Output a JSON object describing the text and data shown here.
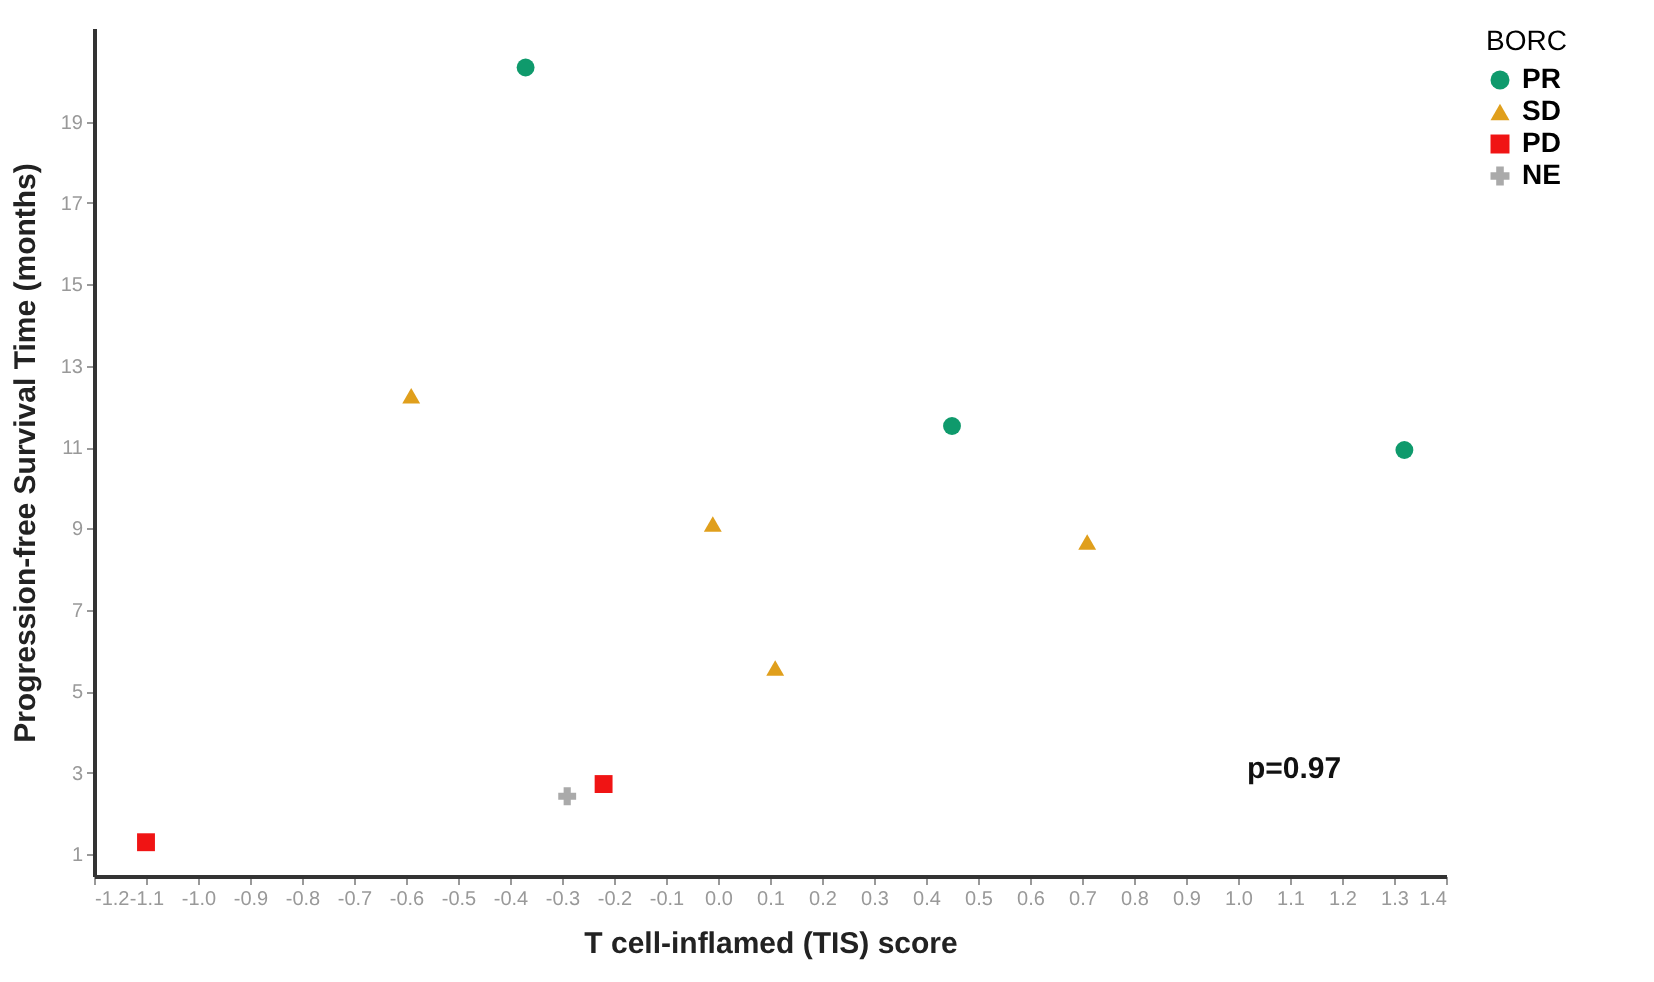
{
  "chart_data": {
    "type": "scatter",
    "xlabel": "T cell-inflamed (TIS) score",
    "ylabel": "Progression-free Survival Time (months)",
    "legend_title": "BORC",
    "legend": "right",
    "grid": false,
    "xlim": [
      -1.2,
      1.4
    ],
    "ylim": [
      0.46,
      21.3
    ],
    "xticks": [
      -1.2,
      -1.1,
      {
        "value": -1.0,
        "label": "-1.0"
      },
      -0.9,
      -0.8,
      -0.7,
      -0.6,
      -0.5,
      -0.4,
      -0.3,
      -0.2,
      -0.1,
      {
        "value": 0,
        "label": "0.0"
      },
      0.1,
      0.2,
      0.3,
      0.4,
      0.5,
      0.6,
      0.7,
      0.8,
      0.9,
      {
        "value": 1,
        "label": "1.0"
      },
      1.1,
      1.2,
      1.3,
      1.4
    ],
    "yticks": [
      1,
      3,
      5,
      7,
      9,
      11,
      13,
      15,
      17,
      19
    ],
    "annotations": [
      "p=0.97"
    ],
    "series": [
      {
        "name": "PR",
        "color": "#0f9a6c",
        "marker": "circle",
        "x": [
          -0.37,
          0.45,
          1.32
        ],
        "values": [
          20.33,
          11.52,
          10.93
        ]
      },
      {
        "name": "SD",
        "color": "#e09f1c",
        "marker": "triangle",
        "x": [
          -0.59,
          -0.01,
          0.11,
          0.71
        ],
        "values": [
          12.26,
          9.11,
          5.57,
          8.67
        ]
      },
      {
        "name": "PD",
        "color": "#f01414",
        "marker": "square",
        "x": [
          -1.1,
          -0.22
        ],
        "values": [
          1.29,
          2.72
        ]
      },
      {
        "name": "NE",
        "color": "#aaaaaa",
        "marker": "cross",
        "x": [
          -0.29
        ],
        "values": [
          2.42
        ]
      }
    ]
  }
}
